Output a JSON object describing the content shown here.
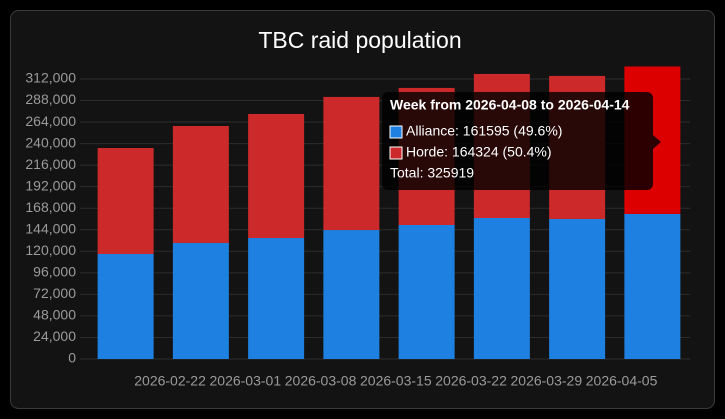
{
  "chart_data": {
    "type": "stacked_bar",
    "title": "TBC raid population",
    "categories": [
      null,
      "2026-02-22",
      "2026-03-01",
      "2026-03-08",
      "2026-03-15",
      "2026-03-22",
      "2026-03-29",
      "2026-04-05"
    ],
    "series": [
      {
        "name": "Alliance",
        "color": "#1e80e0",
        "values": [
          117000,
          129300,
          134800,
          143700,
          149300,
          157100,
          156000,
          161595
        ]
      },
      {
        "name": "Horde",
        "color": "#cc2a2a",
        "highlight_color": "#dd0000",
        "values": [
          118100,
          130300,
          138200,
          148300,
          152700,
          160500,
          159400,
          164324
        ]
      }
    ],
    "ylim": [
      0,
      324000
    ],
    "yticks": [
      0,
      {
        "value": 24000,
        "label": "24,000"
      },
      {
        "value": 48000,
        "label": "48,000"
      },
      {
        "value": 72000,
        "label": "72,000"
      },
      {
        "value": 96000,
        "label": "96,000"
      },
      {
        "value": 120000,
        "label": "120,000"
      },
      {
        "value": 144000,
        "label": "144,000"
      },
      {
        "value": 168000,
        "label": "168,000"
      },
      {
        "value": 192000,
        "label": "192,000"
      },
      {
        "value": 216000,
        "label": "216,000"
      },
      {
        "value": 240000,
        "label": "240,000"
      },
      {
        "value": 264000,
        "label": "264,000"
      },
      {
        "value": 288000,
        "label": "288,000"
      },
      {
        "value": 312000,
        "label": "312,000"
      }
    ],
    "grid": true,
    "tooltip": {
      "title": "Week from 2026-04-08 to 2026-04-14",
      "lines": [
        "Alliance: 161595 (49.6%)",
        "Horde: 164324 (50.4%)"
      ],
      "total": "Total: 325919"
    }
  }
}
